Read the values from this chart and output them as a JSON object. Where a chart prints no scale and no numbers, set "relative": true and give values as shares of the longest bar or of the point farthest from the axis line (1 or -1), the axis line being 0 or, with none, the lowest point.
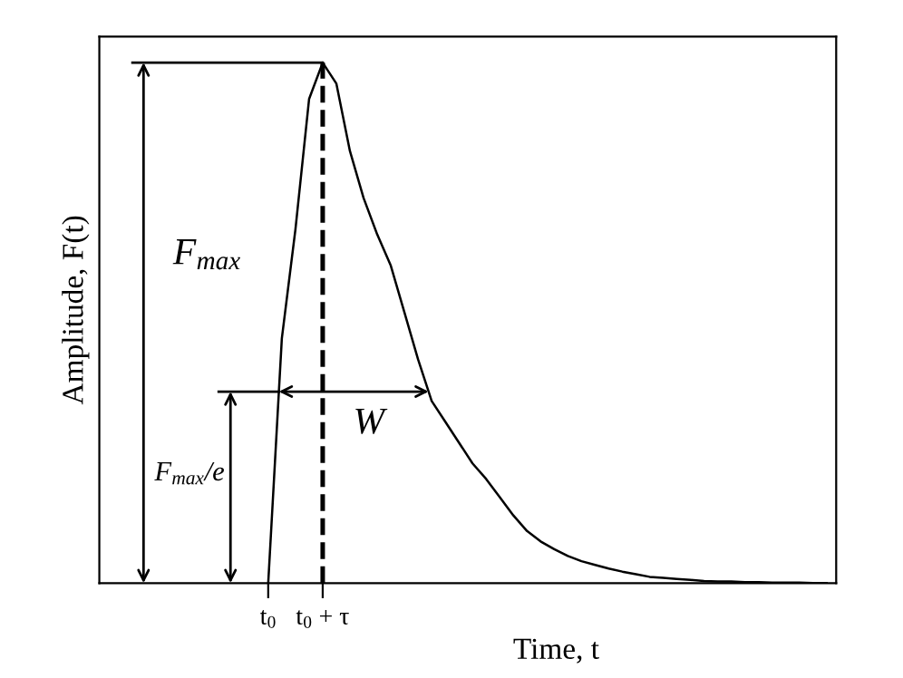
{
  "chart_data": {
    "type": "line",
    "relative": true,
    "xlabel": "Time, t",
    "ylabel": "Amplitude, F(t)",
    "categories": [
      null,
      null,
      null,
      null,
      null,
      null,
      null,
      null,
      null,
      null,
      null,
      null,
      "t$_{0}$",
      null,
      null,
      null,
      "t$_{0}$ + τ",
      null,
      null,
      null,
      null,
      null,
      null,
      null,
      null,
      null,
      null,
      null,
      null,
      null,
      null,
      null,
      null,
      null,
      null,
      null,
      null,
      null,
      null,
      null,
      null,
      null,
      null,
      null,
      null,
      null,
      null,
      null,
      null,
      null,
      null,
      null,
      null,
      null
    ],
    "tick_labels": "x",
    "grid": false,
    "marker": "none",
    "line_style": "solid",
    "series": [
      {
        "color": "#000000",
        "values": [
          null,
          null,
          null,
          null,
          null,
          null,
          null,
          null,
          null,
          null,
          null,
          null,
          0,
          0.47,
          0.68,
          0.93,
          1,
          0.96,
          0.83,
          0.74,
          0.67,
          0.61,
          0.52,
          0.43,
          0.35,
          0.31,
          0.27,
          0.23,
          0.2,
          0.165,
          0.13,
          0.1,
          0.08,
          0.065,
          0.052,
          0.042,
          0.035,
          0.028,
          0.022,
          0.017,
          0.012,
          0.01,
          0.008,
          0.006,
          0.004,
          0.003,
          0.003,
          0.002,
          0.002,
          0.001,
          0.001,
          0.001,
          0,
          0
        ]
      }
    ],
    "ref_lines": [
      {
        "axis": "x",
        "value": "t$_{0}$ + τ",
        "label": null,
        "color": "#000000",
        "line_style": "dashed"
      }
    ],
    "annotations": [
      "F$_{max}$",
      "F$_{max}$/e",
      "W"
    ]
  }
}
